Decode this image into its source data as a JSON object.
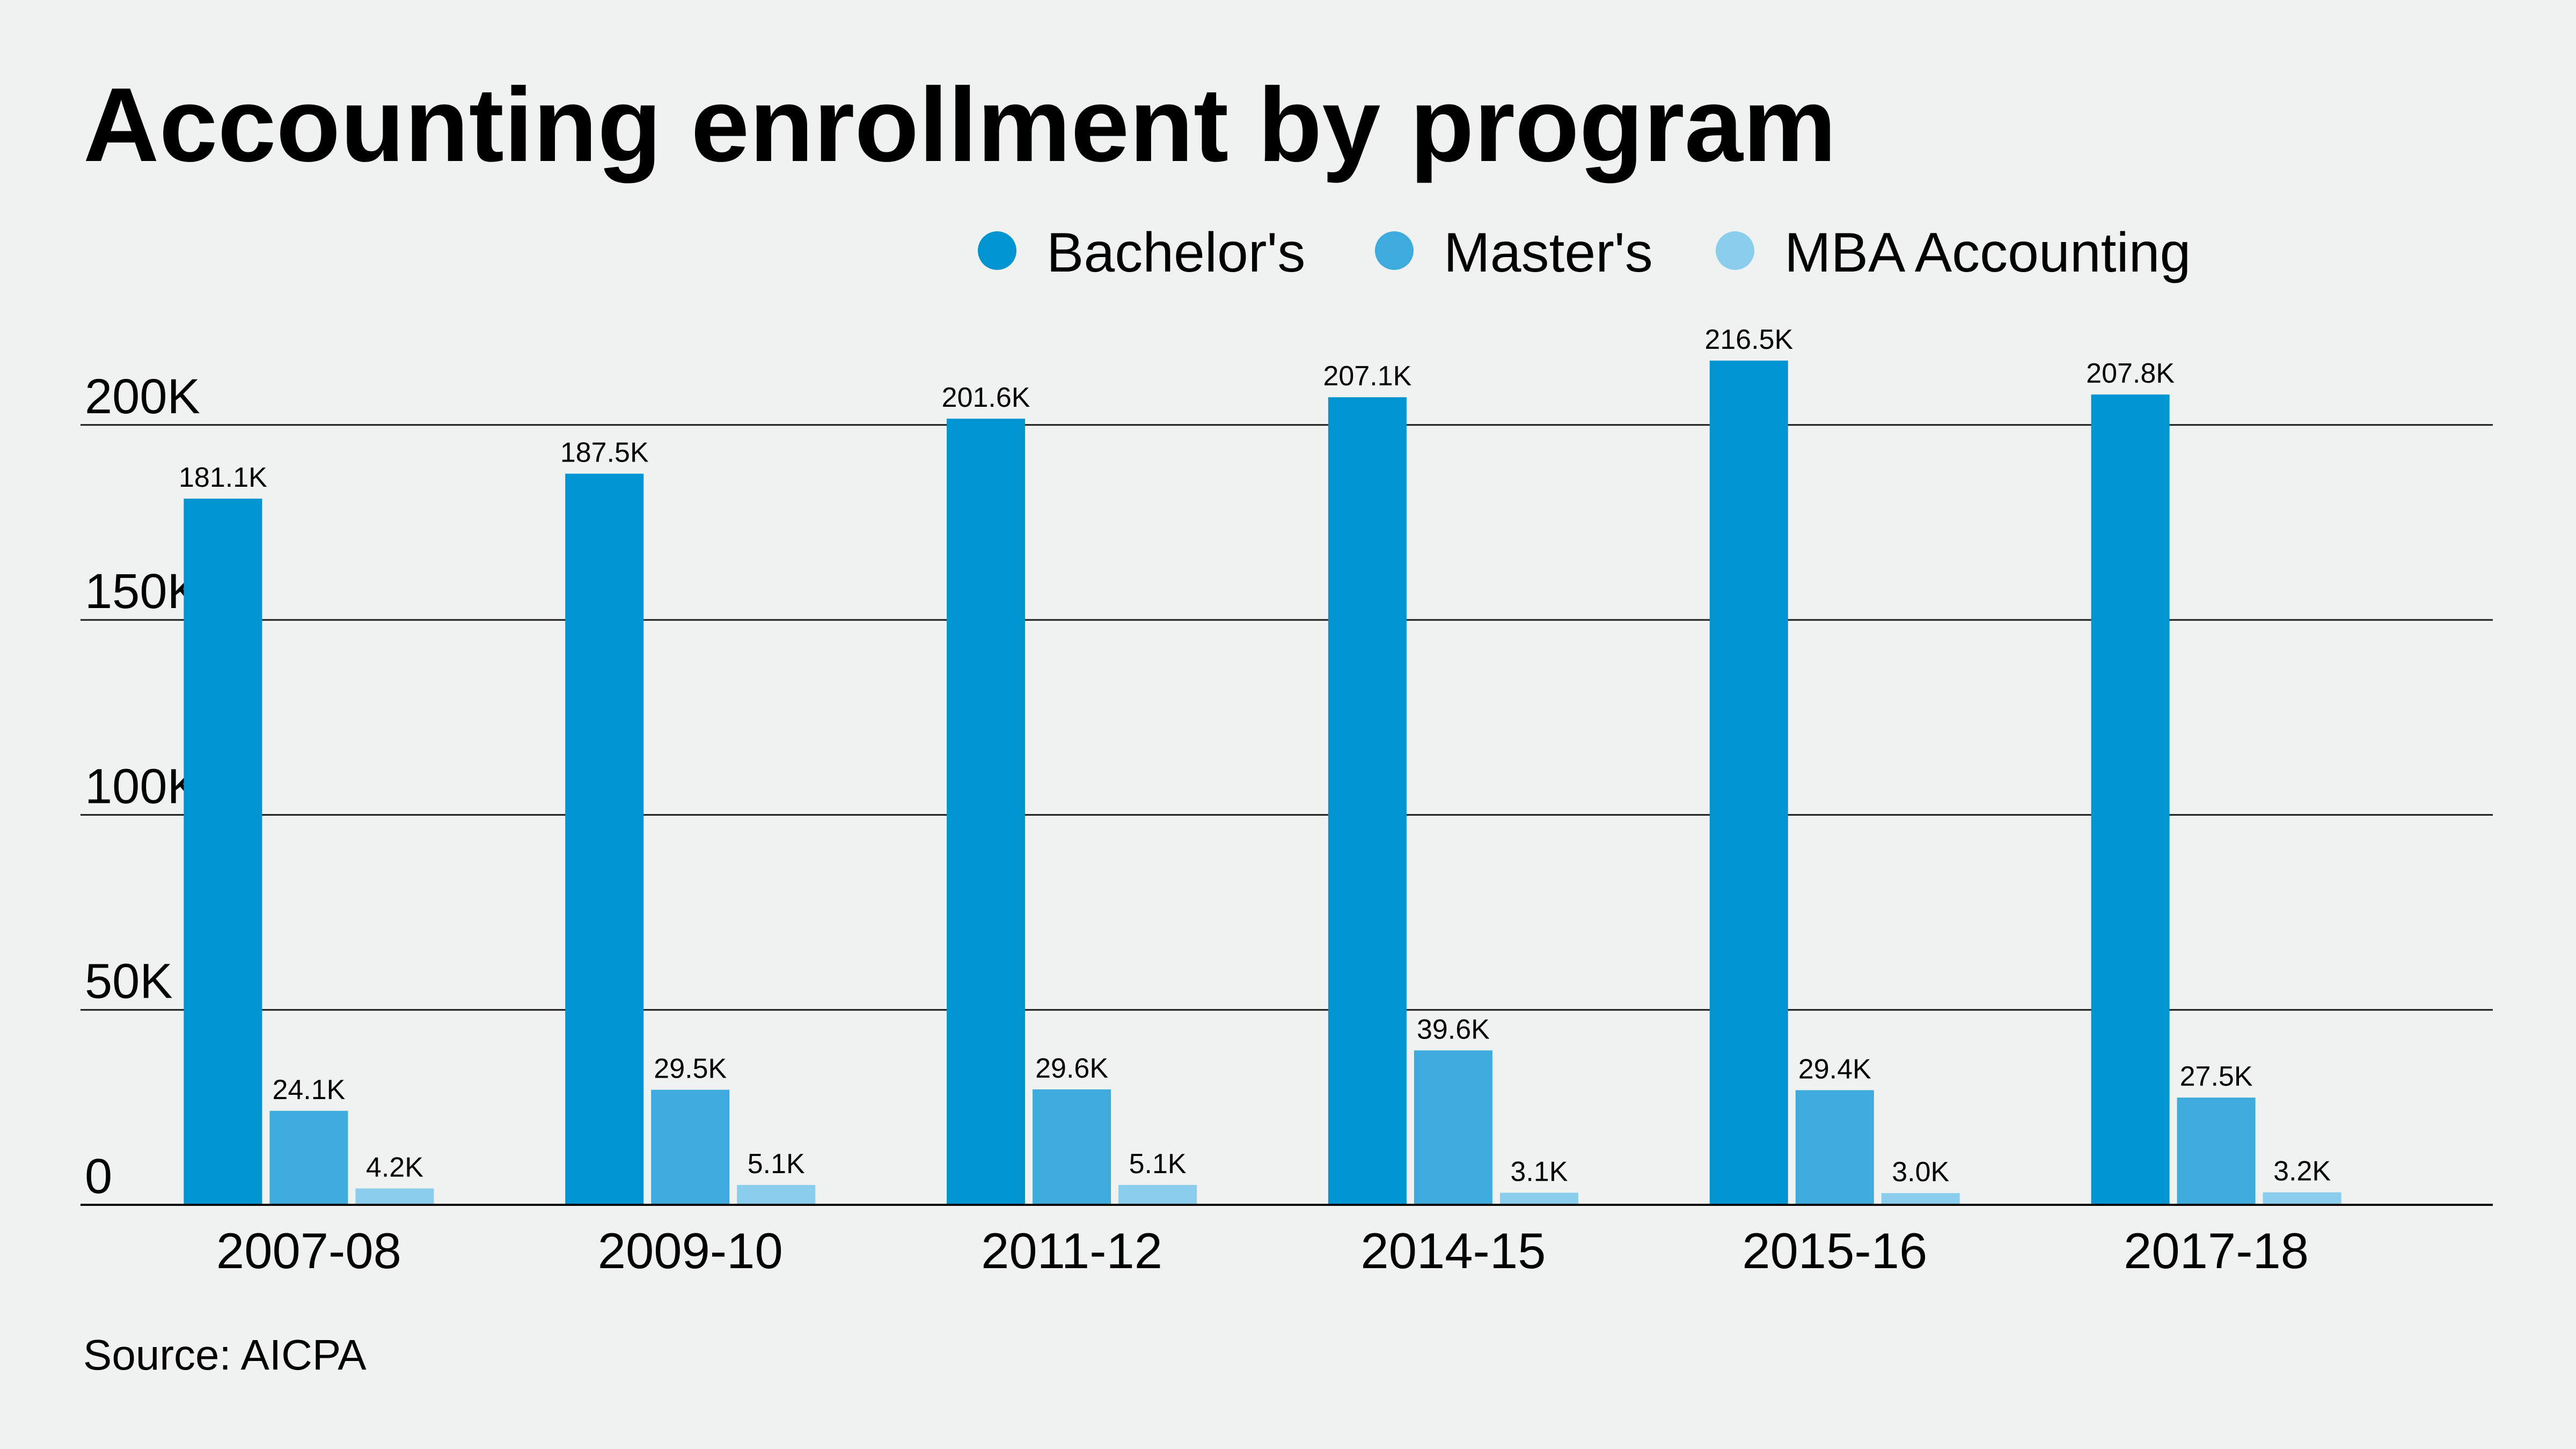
{
  "chart_data": {
    "type": "bar",
    "title": "Accounting enrollment by program",
    "source": "Source: AICPA",
    "xlabel": "",
    "ylabel": "",
    "ylim": [
      0,
      230000
    ],
    "grid": true,
    "legend_position": "top-right",
    "yticks": [
      {
        "value": 0,
        "label": "0"
      },
      {
        "value": 50000,
        "label": "50K"
      },
      {
        "value": 100000,
        "label": "100K"
      },
      {
        "value": 150000,
        "label": "150K"
      },
      {
        "value": 200000,
        "label": "200K"
      }
    ],
    "categories": [
      "2007-08",
      "2009-10",
      "2011-12",
      "2014-15",
      "2015-16",
      "2017-18"
    ],
    "series": [
      {
        "name": "Bachelor's",
        "color": "#0094D0",
        "values": [
          181100,
          187500,
          201600,
          207100,
          216500,
          207800
        ],
        "labels": [
          "181.1K",
          "187.5K",
          "201.6K",
          "207.1K",
          "216.5K",
          "207.8K"
        ]
      },
      {
        "name": "Master's",
        "color": "#3DABDC",
        "values": [
          24100,
          29500,
          29600,
          39600,
          29400,
          27500
        ],
        "labels": [
          "24.1K",
          "29.5K",
          "29.6K",
          "39.6K",
          "29.4K",
          "27.5K"
        ]
      },
      {
        "name": "MBA Accounting",
        "color": "#8ACDEC",
        "values": [
          4200,
          5100,
          5100,
          3100,
          3000,
          3200
        ],
        "labels": [
          "4.2K",
          "5.1K",
          "5.1K",
          "3.1K",
          "3.0K",
          "3.2K"
        ]
      }
    ]
  }
}
